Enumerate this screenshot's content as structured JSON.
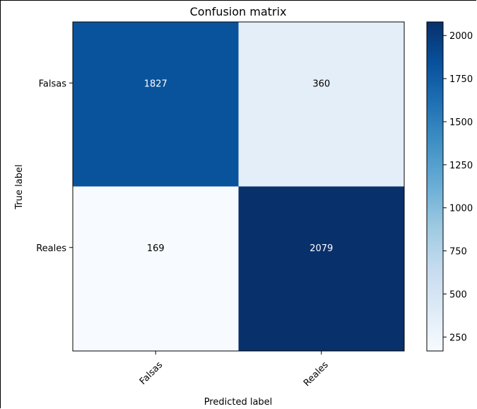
{
  "chart_data": {
    "type": "heatmap",
    "title": "Confusion matrix",
    "xlabel": "Predicted label",
    "ylabel": "True label",
    "x_categories": [
      "Falsas",
      "Reales"
    ],
    "y_categories": [
      "Falsas",
      "Reales"
    ],
    "values": [
      [
        1827,
        360
      ],
      [
        169,
        2079
      ]
    ],
    "colormap": "Blues",
    "color_range": [
      169,
      2079
    ],
    "colorbar_ticks": [
      250,
      500,
      750,
      1000,
      1250,
      1500,
      1750,
      2000
    ],
    "text_colors": {
      "light": "#ffffff",
      "dark": "#000000"
    }
  }
}
